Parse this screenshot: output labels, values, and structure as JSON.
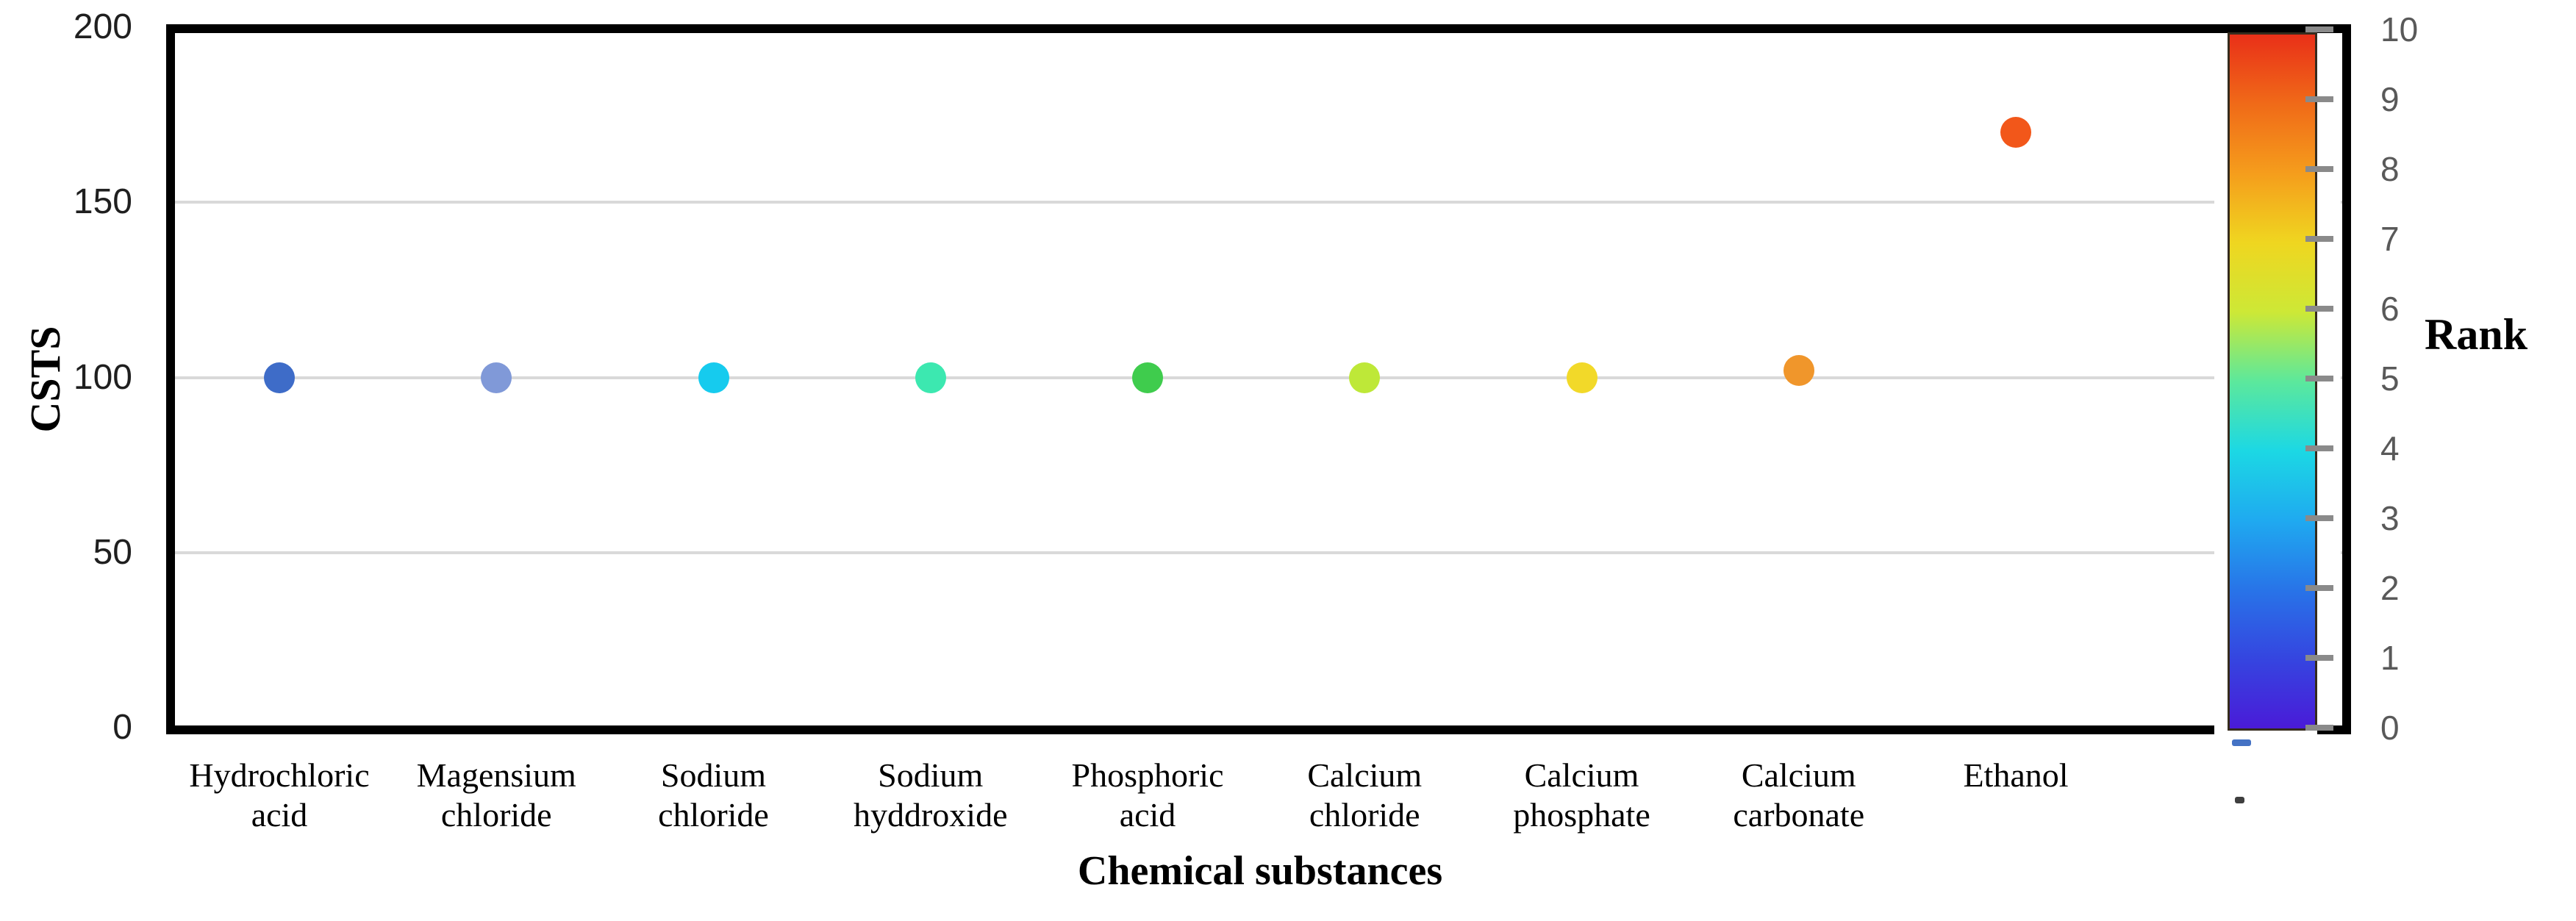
{
  "chart_data": {
    "type": "scatter",
    "title": "",
    "xlabel": "Chemical substances",
    "ylabel": "CSTS",
    "ylim": [
      0,
      200
    ],
    "yticks": [
      0,
      50,
      100,
      150,
      200
    ],
    "gridlines": [
      50,
      100,
      150
    ],
    "grid": "horizontal-only",
    "legend_position": "none",
    "categories": [
      "Hydrochloric acid",
      "Magensium chloride",
      "Sodium chloride",
      "Sodium hyddroxide",
      "Phosphoric acid",
      "Calcium chloride",
      "Calcium phosphate",
      "Calcium carbonate",
      "Ethanol"
    ],
    "category_label_lines": [
      [
        "Hydrochloric",
        "acid"
      ],
      [
        "Magensium",
        "chloride"
      ],
      [
        "Sodium",
        "chloride"
      ],
      [
        "Sodium",
        "hyddroxide"
      ],
      [
        "Phosphoric",
        "acid"
      ],
      [
        "Calcium",
        "chloride"
      ],
      [
        "Calcium",
        "phosphate"
      ],
      [
        "Calcium",
        "carbonate"
      ],
      [
        "Ethanol"
      ]
    ],
    "series": [
      {
        "name": "CSTS",
        "values": [
          100,
          100,
          100,
          100,
          100,
          100,
          100,
          102,
          170
        ]
      }
    ],
    "ranks": [
      1,
      2,
      3,
      4,
      5,
      6,
      7,
      8,
      9
    ],
    "point_colors": [
      "#3E6CC8",
      "#8099D8",
      "#16CBEE",
      "#3CE8B0",
      "#3FCC4D",
      "#BEE838",
      "#F2D929",
      "#F0962B",
      "#F2571A"
    ],
    "colorbar": {
      "label": "Rank",
      "min": 0,
      "max": 10,
      "ticks": [
        0,
        1,
        2,
        3,
        4,
        5,
        6,
        7,
        8,
        9,
        10
      ],
      "colors_top_to_bottom": [
        "#E93018",
        "#F06A18",
        "#F59D1C",
        "#EFD620",
        "#CDE836",
        "#5CE89C",
        "#1CD8E4",
        "#1FAAF0",
        "#2874E8",
        "#3545E0",
        "#4A1BD8"
      ]
    },
    "stray_marks": {
      "blue_dash_color": "#4472C4",
      "dark_dash_color": "#3F3F3F"
    }
  }
}
